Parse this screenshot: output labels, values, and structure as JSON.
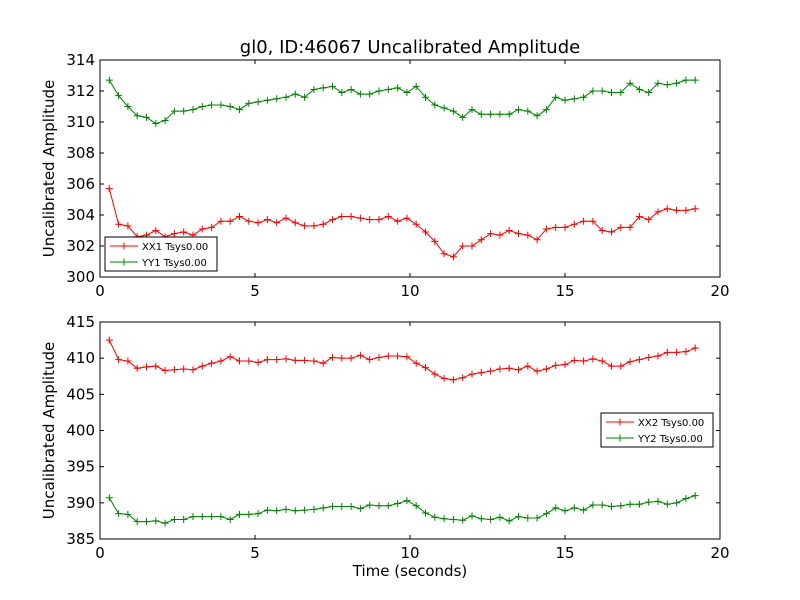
{
  "title": "gl0, ID:46067 Uncalibrated Amplitude",
  "colors": {
    "xx": "#ff0000",
    "yy": "#008000",
    "frame": "#000000",
    "background": "#ffffff"
  },
  "chart_data": [
    {
      "type": "line",
      "title": "gl0, ID:46067 Uncalibrated Amplitude",
      "xlabel": "",
      "ylabel": "Uncalibrated Amplitude",
      "xlim": [
        0,
        20
      ],
      "ylim": [
        300,
        314
      ],
      "xticks": [
        "0",
        "5",
        "10",
        "15",
        "20"
      ],
      "yticks": [
        "300",
        "302",
        "304",
        "306",
        "308",
        "310",
        "312",
        "314"
      ],
      "grid": false,
      "legend_position": "lower-left",
      "x": [
        0.3,
        0.6,
        0.9,
        1.2,
        1.5,
        1.8,
        2.1,
        2.4,
        2.7,
        3.0,
        3.3,
        3.6,
        3.9,
        4.2,
        4.5,
        4.8,
        5.1,
        5.4,
        5.7,
        6.0,
        6.3,
        6.6,
        6.9,
        7.2,
        7.5,
        7.8,
        8.1,
        8.4,
        8.7,
        9.0,
        9.3,
        9.6,
        9.9,
        10.2,
        10.5,
        10.8,
        11.1,
        11.4,
        11.7,
        12.0,
        12.3,
        12.6,
        12.9,
        13.2,
        13.5,
        13.8,
        14.1,
        14.4,
        14.7,
        15.0,
        15.3,
        15.6,
        15.9,
        16.2,
        16.5,
        16.8,
        17.1,
        17.4,
        17.7,
        18.0,
        18.3,
        18.6,
        18.9,
        19.2
      ],
      "series": [
        {
          "name": "XX1 Tsys0.00",
          "color": "#ff0000",
          "values": [
            305.7,
            303.4,
            303.3,
            302.6,
            302.7,
            303.0,
            302.6,
            302.8,
            302.9,
            302.7,
            303.1,
            303.2,
            303.6,
            303.6,
            303.9,
            303.6,
            303.5,
            303.7,
            303.5,
            303.8,
            303.5,
            303.3,
            303.3,
            303.4,
            303.7,
            303.9,
            303.9,
            303.8,
            303.7,
            303.7,
            303.9,
            303.6,
            303.8,
            303.4,
            302.9,
            302.3,
            301.5,
            301.3,
            302.0,
            302.0,
            302.4,
            302.8,
            302.7,
            303.0,
            302.8,
            302.7,
            302.4,
            303.1,
            303.2,
            303.2,
            303.4,
            303.6,
            303.6,
            303.0,
            302.9,
            303.2,
            303.2,
            303.9,
            303.7,
            304.2,
            304.4,
            304.3,
            304.3,
            304.4
          ]
        },
        {
          "name": "YY1 Tsys0.00",
          "color": "#008000",
          "values": [
            312.7,
            311.7,
            311.0,
            310.4,
            310.3,
            309.9,
            310.1,
            310.7,
            310.7,
            310.8,
            311.0,
            311.1,
            311.1,
            311.0,
            310.8,
            311.2,
            311.3,
            311.4,
            311.5,
            311.6,
            311.8,
            311.6,
            312.1,
            312.2,
            312.3,
            311.9,
            312.1,
            311.8,
            311.8,
            312.0,
            312.1,
            312.2,
            311.9,
            312.3,
            311.6,
            311.1,
            310.9,
            310.7,
            310.3,
            310.8,
            310.5,
            310.5,
            310.5,
            310.5,
            310.8,
            310.7,
            310.4,
            310.8,
            311.6,
            311.4,
            311.5,
            311.6,
            312.0,
            312.0,
            311.9,
            311.9,
            312.5,
            312.1,
            311.9,
            312.5,
            312.4,
            312.5,
            312.7,
            312.7
          ]
        }
      ]
    },
    {
      "type": "line",
      "title": "",
      "xlabel": "Time (seconds)",
      "ylabel": "Uncalibrated Amplitude",
      "xlim": [
        0,
        20
      ],
      "ylim": [
        385,
        415
      ],
      "xticks": [
        "0",
        "5",
        "10",
        "15",
        "20"
      ],
      "yticks": [
        "385",
        "390",
        "395",
        "400",
        "405",
        "410",
        "415"
      ],
      "grid": false,
      "legend_position": "center-right",
      "x": [
        0.3,
        0.6,
        0.9,
        1.2,
        1.5,
        1.8,
        2.1,
        2.4,
        2.7,
        3.0,
        3.3,
        3.6,
        3.9,
        4.2,
        4.5,
        4.8,
        5.1,
        5.4,
        5.7,
        6.0,
        6.3,
        6.6,
        6.9,
        7.2,
        7.5,
        7.8,
        8.1,
        8.4,
        8.7,
        9.0,
        9.3,
        9.6,
        9.9,
        10.2,
        10.5,
        10.8,
        11.1,
        11.4,
        11.7,
        12.0,
        12.3,
        12.6,
        12.9,
        13.2,
        13.5,
        13.8,
        14.1,
        14.4,
        14.7,
        15.0,
        15.3,
        15.6,
        15.9,
        16.2,
        16.5,
        16.8,
        17.1,
        17.4,
        17.7,
        18.0,
        18.3,
        18.6,
        18.9,
        19.2
      ],
      "series": [
        {
          "name": "XX2 Tsys0.00",
          "color": "#ff0000",
          "values": [
            412.5,
            409.8,
            409.6,
            408.6,
            408.8,
            408.9,
            408.3,
            408.4,
            408.5,
            408.4,
            408.9,
            409.3,
            409.6,
            410.2,
            409.6,
            409.6,
            409.4,
            409.8,
            409.8,
            409.9,
            409.7,
            409.7,
            409.6,
            409.3,
            410.1,
            410.0,
            410.0,
            410.4,
            409.8,
            410.1,
            410.3,
            410.3,
            410.2,
            409.3,
            408.7,
            407.8,
            407.2,
            407.0,
            407.3,
            407.8,
            408.0,
            408.2,
            408.5,
            408.6,
            408.4,
            408.9,
            408.2,
            408.5,
            409.0,
            409.1,
            409.7,
            409.6,
            409.9,
            409.6,
            408.9,
            408.9,
            409.5,
            409.8,
            410.1,
            410.3,
            410.8,
            410.8,
            410.9,
            411.4
          ]
        },
        {
          "name": "YY2 Tsys0.00",
          "color": "#008000",
          "values": [
            390.7,
            388.5,
            388.4,
            387.4,
            387.4,
            387.5,
            387.2,
            387.7,
            387.7,
            388.1,
            388.1,
            388.1,
            388.1,
            387.7,
            388.4,
            388.4,
            388.5,
            389.0,
            388.9,
            389.1,
            388.9,
            389.0,
            389.1,
            389.3,
            389.5,
            389.5,
            389.5,
            389.2,
            389.7,
            389.6,
            389.6,
            389.9,
            390.3,
            389.6,
            388.6,
            388.0,
            387.8,
            387.7,
            387.6,
            388.2,
            387.8,
            387.7,
            388.0,
            387.5,
            388.1,
            387.9,
            387.9,
            388.5,
            389.3,
            388.9,
            389.3,
            389.0,
            389.7,
            389.7,
            389.5,
            389.6,
            389.8,
            389.8,
            390.1,
            390.2,
            389.8,
            390.0,
            390.6,
            391.0
          ]
        }
      ]
    }
  ]
}
